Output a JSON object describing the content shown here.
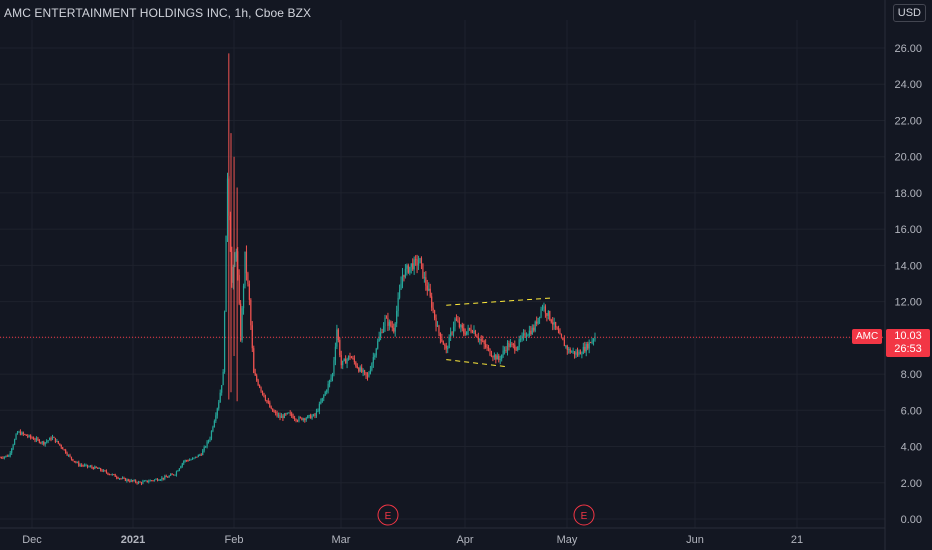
{
  "chart_data": {
    "type": "candlestick",
    "title": "AMC ENTERTAINMENT HOLDINGS INC, 1h, Cboe BZX",
    "symbol": "AMC",
    "interval": "1h",
    "exchange": "Cboe BZX",
    "currency": "USD",
    "ylim": [
      0,
      27
    ],
    "y_ticks": [
      "26.00",
      "24.00",
      "22.00",
      "20.00",
      "18.00",
      "16.00",
      "14.00",
      "12.00",
      "10.00",
      "8.00",
      "6.00",
      "4.00",
      "2.00",
      "0.00"
    ],
    "y_tick_values": [
      26,
      24,
      22,
      20,
      18,
      16,
      14,
      12,
      10,
      8,
      6,
      4,
      2,
      0
    ],
    "x_ticks": [
      "Dec",
      "2021",
      "Feb",
      "Mar",
      "Apr",
      "May",
      "Jun",
      "21"
    ],
    "last_price": "10.03",
    "countdown": "26:53",
    "last_price_value": 10.03,
    "earnings_markers": [
      "E",
      "E"
    ],
    "grid": true,
    "price_series_approx": [
      {
        "t": 0,
        "c": 3.4
      },
      {
        "t": 2,
        "c": 3.5
      },
      {
        "t": 4,
        "c": 4.8
      },
      {
        "t": 6,
        "c": 4.6
      },
      {
        "t": 8,
        "c": 4.4
      },
      {
        "t": 10,
        "c": 4.2
      },
      {
        "t": 12,
        "c": 4.5
      },
      {
        "t": 14,
        "c": 4.0
      },
      {
        "t": 16,
        "c": 3.4
      },
      {
        "t": 18,
        "c": 3.0
      },
      {
        "t": 20,
        "c": 2.9
      },
      {
        "t": 22,
        "c": 2.8
      },
      {
        "t": 24,
        "c": 2.6
      },
      {
        "t": 26,
        "c": 2.4
      },
      {
        "t": 28,
        "c": 2.2
      },
      {
        "t": 30,
        "c": 2.1
      },
      {
        "t": 32,
        "c": 2.0
      },
      {
        "t": 34,
        "c": 2.1
      },
      {
        "t": 36,
        "c": 2.2
      },
      {
        "t": 38,
        "c": 2.3
      },
      {
        "t": 40,
        "c": 2.5
      },
      {
        "t": 42,
        "c": 3.2
      },
      {
        "t": 44,
        "c": 3.3
      },
      {
        "t": 46,
        "c": 3.6
      },
      {
        "t": 48,
        "c": 4.5
      },
      {
        "t": 50,
        "c": 6.5
      },
      {
        "t": 51,
        "c": 8.0
      },
      {
        "t": 52,
        "c": 19.0
      },
      {
        "t": 53,
        "c": 13.0
      },
      {
        "t": 54,
        "c": 15.0
      },
      {
        "t": 55,
        "c": 10.0
      },
      {
        "t": 56,
        "c": 14.5
      },
      {
        "t": 57,
        "c": 12.0
      },
      {
        "t": 58,
        "c": 8.0
      },
      {
        "t": 60,
        "c": 7.0
      },
      {
        "t": 62,
        "c": 6.0
      },
      {
        "t": 64,
        "c": 5.6
      },
      {
        "t": 66,
        "c": 5.8
      },
      {
        "t": 68,
        "c": 5.5
      },
      {
        "t": 70,
        "c": 5.6
      },
      {
        "t": 72,
        "c": 5.7
      },
      {
        "t": 74,
        "c": 6.8
      },
      {
        "t": 76,
        "c": 8.0
      },
      {
        "t": 77,
        "c": 10.5
      },
      {
        "t": 78,
        "c": 8.5
      },
      {
        "t": 80,
        "c": 9.0
      },
      {
        "t": 82,
        "c": 8.3
      },
      {
        "t": 84,
        "c": 7.8
      },
      {
        "t": 86,
        "c": 9.5
      },
      {
        "t": 88,
        "c": 11.0
      },
      {
        "t": 90,
        "c": 10.5
      },
      {
        "t": 92,
        "c": 13.5
      },
      {
        "t": 94,
        "c": 14.0
      },
      {
        "t": 96,
        "c": 14.2
      },
      {
        "t": 97,
        "c": 13.2
      },
      {
        "t": 98,
        "c": 12.5
      },
      {
        "t": 100,
        "c": 10.5
      },
      {
        "t": 102,
        "c": 9.3
      },
      {
        "t": 104,
        "c": 11.0
      },
      {
        "t": 106,
        "c": 10.3
      },
      {
        "t": 108,
        "c": 10.5
      },
      {
        "t": 110,
        "c": 9.8
      },
      {
        "t": 112,
        "c": 9.2
      },
      {
        "t": 114,
        "c": 8.8
      },
      {
        "t": 116,
        "c": 9.6
      },
      {
        "t": 118,
        "c": 9.5
      },
      {
        "t": 120,
        "c": 10.2
      },
      {
        "t": 122,
        "c": 10.5
      },
      {
        "t": 124,
        "c": 11.8
      },
      {
        "t": 126,
        "c": 11.0
      },
      {
        "t": 128,
        "c": 10.0
      },
      {
        "t": 130,
        "c": 9.3
      },
      {
        "t": 132,
        "c": 9.1
      },
      {
        "t": 134,
        "c": 9.5
      },
      {
        "t": 136,
        "c": 10.1
      }
    ],
    "channel_upper": [
      {
        "t": 102,
        "y": 11.8
      },
      {
        "t": 126,
        "y": 12.2
      }
    ],
    "channel_lower": [
      {
        "t": 102,
        "y": 8.8
      },
      {
        "t": 116,
        "y": 8.4
      }
    ]
  }
}
